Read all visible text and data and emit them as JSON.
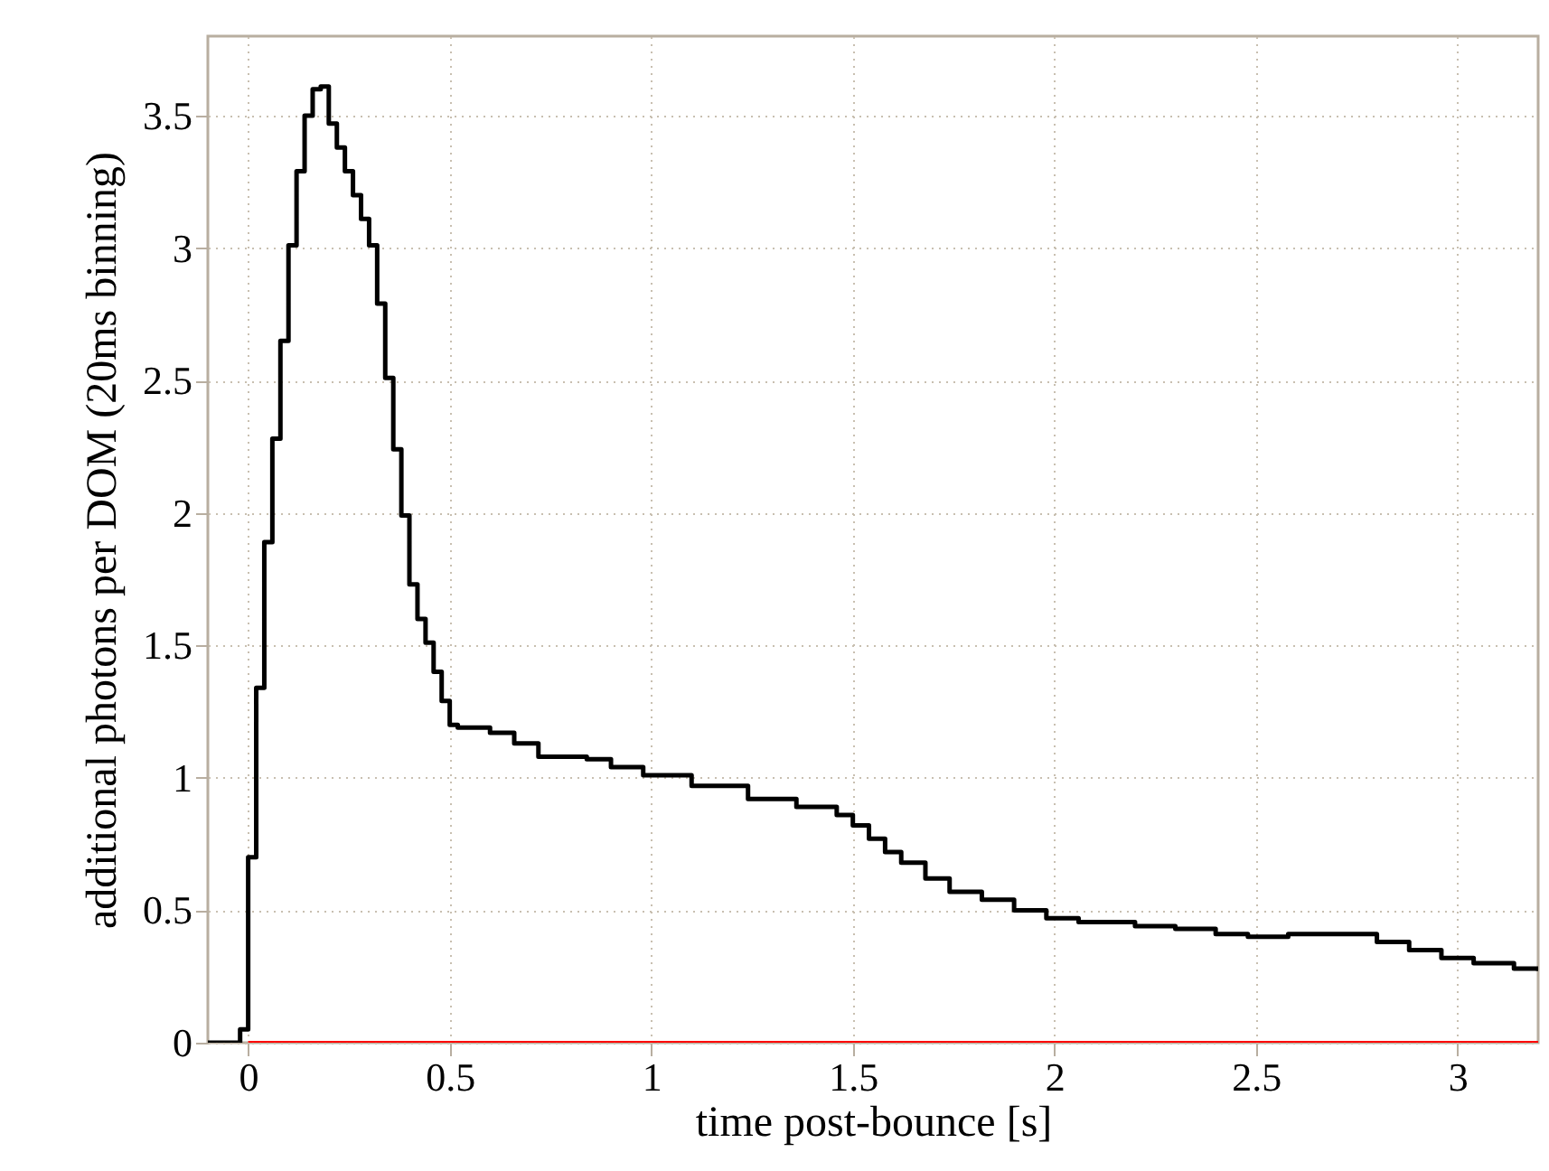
{
  "chart_data": {
    "type": "step",
    "xlabel": "time post-bounce [s]",
    "ylabel": "additional photons per DOM (20ms binning)",
    "series": [
      {
        "color": "#000000",
        "x": [
          -0.1,
          -0.02,
          0,
          0.02,
          0.04,
          0.06,
          0.08,
          0.1,
          0.12,
          0.14,
          0.16,
          0.18,
          0.2,
          0.22,
          0.24,
          0.26,
          0.28,
          0.3,
          0.32,
          0.34,
          0.36,
          0.38,
          0.4,
          0.42,
          0.44,
          0.46,
          0.48,
          0.5,
          0.52,
          0.6,
          0.66,
          0.72,
          0.84,
          0.9,
          0.98,
          1.1,
          1.24,
          1.36,
          1.46,
          1.5,
          1.54,
          1.58,
          1.62,
          1.68,
          1.74,
          1.82,
          1.9,
          1.98,
          2.06,
          2.2,
          2.3,
          2.4,
          2.48,
          2.58,
          2.72,
          2.8,
          2.88,
          2.96,
          3.04,
          3.14,
          3.2
        ],
        "values": [
          0,
          0.05,
          0.7,
          1.34,
          1.89,
          2.28,
          2.65,
          3.01,
          3.29,
          3.5,
          3.6,
          3.61,
          3.47,
          3.38,
          3.29,
          3.2,
          3.11,
          3.01,
          2.79,
          2.51,
          2.24,
          1.99,
          1.73,
          1.6,
          1.51,
          1.4,
          1.29,
          1.2,
          1.19,
          1.17,
          1.13,
          1.08,
          1.07,
          1.04,
          1.01,
          0.97,
          0.92,
          0.89,
          0.86,
          0.82,
          0.77,
          0.72,
          0.68,
          0.62,
          0.57,
          0.54,
          0.5,
          0.47,
          0.455,
          0.44,
          0.43,
          0.41,
          0.4,
          0.41,
          0.41,
          0.38,
          0.35,
          0.32,
          0.3,
          0.28,
          0.27
        ]
      },
      {
        "type": "line",
        "color": "#ff0000",
        "x": [
          0,
          3.2
        ],
        "values": [
          0,
          0
        ]
      }
    ],
    "marker": "none",
    "line_style": "solid",
    "xlim": [
      -0.1,
      3.2
    ],
    "xticks": [
      0,
      0.5,
      1,
      1.5,
      2,
      2.5,
      3
    ],
    "ylim": [
      0,
      3.8
    ],
    "yticks": [
      0,
      0.5,
      1,
      1.5,
      2,
      2.5,
      3,
      3.5
    ],
    "grid": true
  }
}
